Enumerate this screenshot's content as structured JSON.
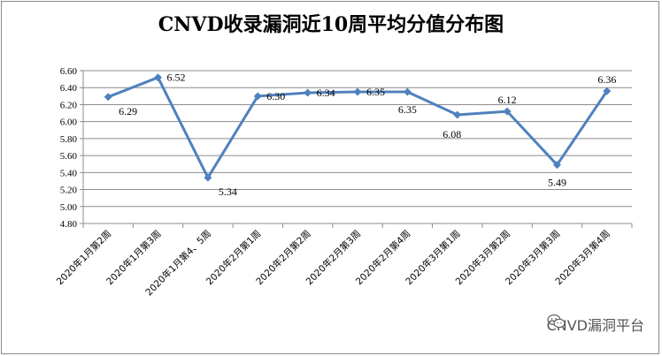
{
  "chart_data": {
    "type": "line",
    "title": "CNVD收录漏洞近10周平均分值分布图",
    "categories": [
      "2020年1月第2周",
      "2020年1月第3周",
      "2020年1月第4、5周",
      "2020年2月第1周",
      "2020年2月第2周",
      "2020年2月第3周",
      "2020年2月第4周",
      "2020年3月第1周",
      "2020年3月第2周",
      "2020年3月第3周",
      "2020年3月第4周"
    ],
    "values": [
      6.29,
      6.52,
      5.34,
      6.3,
      6.34,
      6.35,
      6.35,
      6.08,
      6.12,
      5.49,
      6.36
    ],
    "value_labels": [
      "6.29",
      "6.52",
      "5.34",
      "6.30",
      "6.34",
      "6.35",
      "6.35",
      "6.08",
      "6.12",
      "5.49",
      "6.36"
    ],
    "ylim": [
      4.8,
      6.6
    ],
    "yticks": [
      "4.80",
      "5.00",
      "5.20",
      "5.40",
      "5.60",
      "5.80",
      "6.00",
      "6.20",
      "6.40",
      "6.60"
    ],
    "grid": true,
    "legend": "none",
    "line_color": "#4f81bd"
  },
  "watermark": {
    "text": "CNVD漏洞平台",
    "icon": "wechat-icon"
  }
}
